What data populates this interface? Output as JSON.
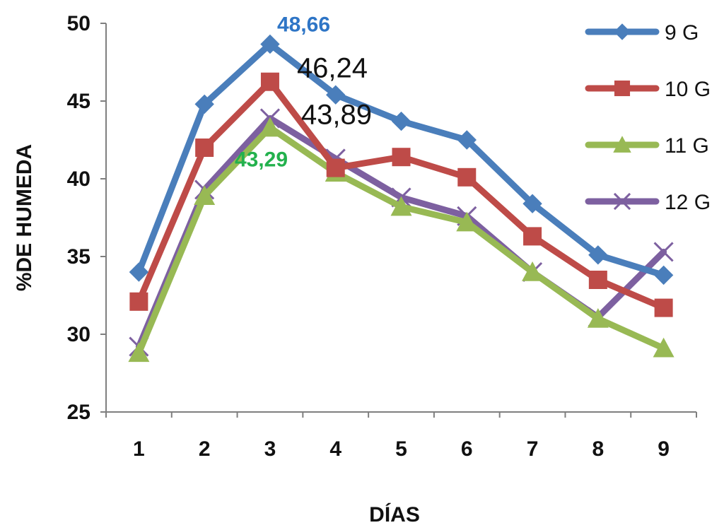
{
  "chart_data": {
    "type": "line",
    "title": "",
    "xlabel": "DÍAS",
    "ylabel": "%DE HUMEDA",
    "categories": [
      "1",
      "2",
      "3",
      "4",
      "5",
      "6",
      "7",
      "8",
      "9"
    ],
    "ylim": [
      25,
      50
    ],
    "yticks": [
      "25",
      "30",
      "35",
      "40",
      "45",
      "50"
    ],
    "grid": false,
    "legend_position": "right",
    "series": [
      {
        "name": "9 G",
        "color": "#4A7EBB",
        "marker": "diamond",
        "values": [
          34.0,
          44.8,
          48.66,
          45.4,
          43.7,
          42.5,
          38.4,
          35.1,
          33.8
        ]
      },
      {
        "name": "10 G",
        "color": "#BE4B48",
        "marker": "square",
        "values": [
          32.1,
          42.0,
          46.24,
          40.7,
          41.4,
          40.1,
          36.3,
          33.5,
          31.7
        ]
      },
      {
        "name": "11 G",
        "color": "#98B954",
        "marker": "triangle",
        "values": [
          28.8,
          38.9,
          43.29,
          40.4,
          38.2,
          37.2,
          34.0,
          31.0,
          29.1
        ]
      },
      {
        "name": "12 G",
        "color": "#7D60A0",
        "marker": "x",
        "values": [
          29.2,
          39.3,
          43.89,
          41.3,
          38.8,
          37.6,
          34.0,
          31.1,
          35.3
        ]
      }
    ],
    "annotations": [
      {
        "text": "48,66",
        "series": 0,
        "point": 2,
        "style": "bold",
        "color": "#2E75C6"
      },
      {
        "text": "46,24",
        "series": 1,
        "point": 2,
        "style": "plain",
        "color": "#111111"
      },
      {
        "text": "43,89",
        "series": 3,
        "point": 2,
        "style": "plain",
        "color": "#111111"
      },
      {
        "text": "43,29",
        "series": 2,
        "point": 2,
        "style": "bold",
        "color": "#23B14D"
      }
    ]
  }
}
